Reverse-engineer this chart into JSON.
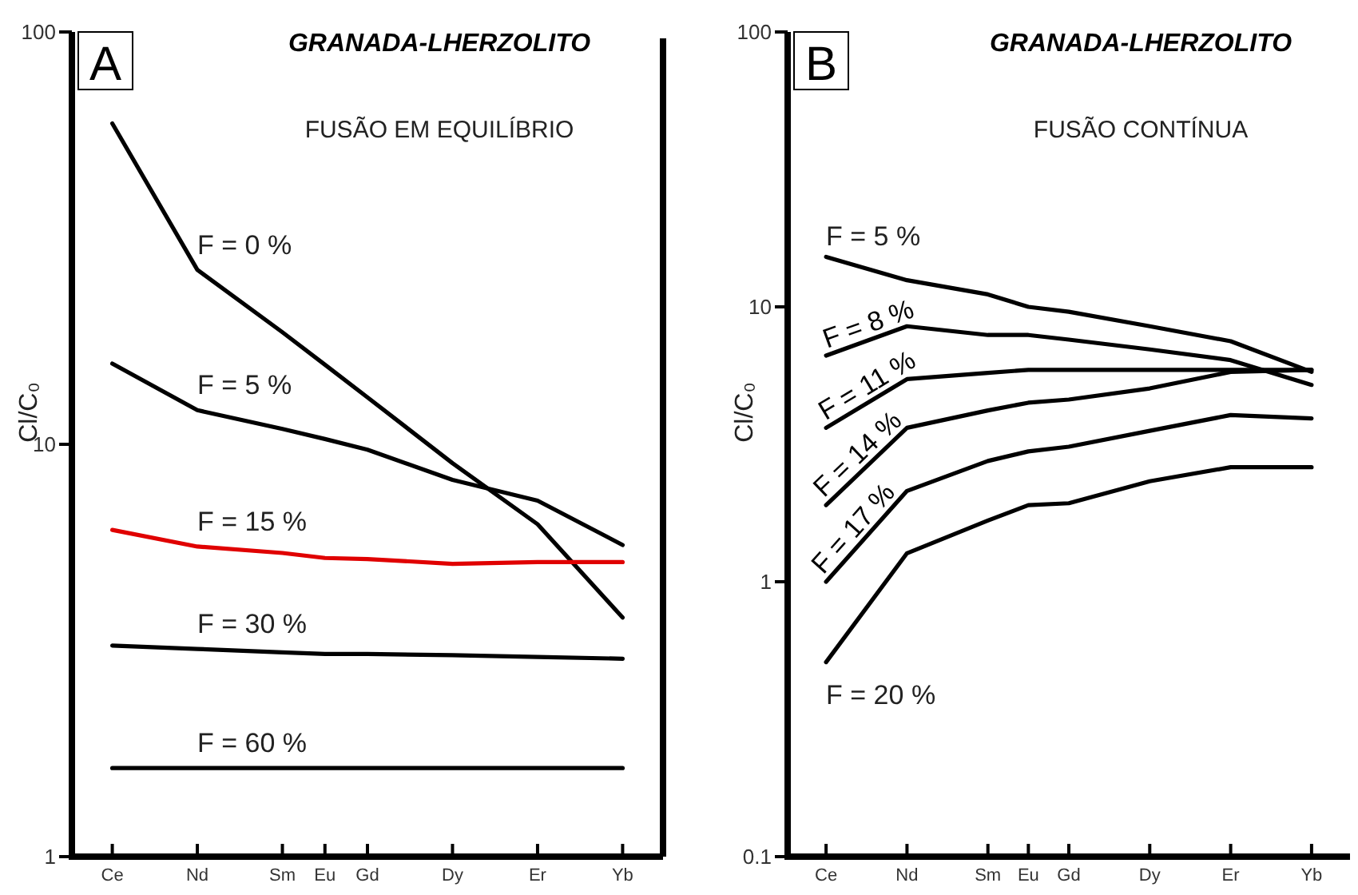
{
  "chart_data": [
    {
      "type": "line",
      "title": "GRANADA-LHERZOLITO",
      "subtitle": "FUSÃO EM  EQUILÍBRIO",
      "ylabel": "Cl/C₀",
      "annotations": [
        "A"
      ],
      "categories": [
        "Ce",
        null,
        "Nd",
        null,
        "Sm",
        "Eu",
        "Gd",
        null,
        "Dy",
        null,
        "Er",
        null,
        "Yb"
      ],
      "ylim": [
        1,
        100
      ],
      "yticks": [
        1,
        10,
        100
      ],
      "log": "y",
      "grid": false,
      "legend": false,
      "marker": "none",
      "line_style": "solid",
      "series": [
        {
          "name": "F = 0 %",
          "color": "#000000",
          "values": [
            60,
            null,
            26.5,
            null,
            18.7,
            15.6,
            13,
            null,
            9,
            null,
            6.4,
            null,
            3.8
          ]
        },
        {
          "name": "F = 5 %",
          "color": "#000000",
          "values": [
            15.7,
            null,
            12.1,
            null,
            10.9,
            10.3,
            9.7,
            null,
            8.2,
            null,
            7.3,
            null,
            5.7
          ]
        },
        {
          "name": "F = 15 %",
          "color": "#e00000",
          "values": [
            6.2,
            null,
            5.65,
            null,
            5.45,
            5.3,
            5.27,
            null,
            5.13,
            null,
            5.18,
            null,
            5.18
          ]
        },
        {
          "name": "F = 30 %",
          "color": "#000000",
          "values": [
            3.25,
            null,
            3.19,
            null,
            3.13,
            3.1,
            3.1,
            null,
            3.08,
            null,
            3.05,
            null,
            3.02
          ]
        },
        {
          "name": "F = 60 %",
          "color": "#000000",
          "values": [
            1.64,
            null,
            1.64,
            null,
            1.64,
            1.64,
            1.64,
            null,
            1.64,
            null,
            1.64,
            null,
            1.64
          ]
        }
      ]
    },
    {
      "type": "line",
      "title": "GRANADA-LHERZOLITO",
      "subtitle": "FUSÃO CONTÍNUA",
      "ylabel": "Cl/C₀",
      "annotations": [
        "B"
      ],
      "categories": [
        "Ce",
        null,
        "Nd",
        null,
        "Sm",
        "Eu",
        "Gd",
        null,
        "Dy",
        null,
        "Er",
        null,
        "Yb"
      ],
      "ylim": [
        0.1,
        100
      ],
      "yticks": [
        0.1,
        1,
        10,
        100
      ],
      "log": "y",
      "grid": false,
      "legend": false,
      "marker": "none",
      "line_style": "solid",
      "series": [
        {
          "name": "F = 5 %",
          "color": "#000000",
          "values": [
            15.2,
            null,
            12.5,
            null,
            11.1,
            10,
            9.6,
            null,
            8.5,
            null,
            7.5,
            null,
            5.8
          ]
        },
        {
          "name": "F = 8 %",
          "color": "#000000",
          "values": [
            6.65,
            null,
            8.5,
            null,
            7.9,
            7.9,
            7.6,
            null,
            7,
            null,
            6.4,
            null,
            5.2
          ]
        },
        {
          "name": "F = 11 %",
          "color": "#000000",
          "values": [
            3.63,
            null,
            5.46,
            null,
            5.75,
            5.9,
            5.9,
            null,
            5.9,
            null,
            5.9,
            null,
            5.9
          ]
        },
        {
          "name": "F = 14 %",
          "color": "#000000",
          "values": [
            1.9,
            null,
            3.63,
            null,
            4.2,
            4.48,
            4.6,
            null,
            5.05,
            null,
            5.8,
            null,
            5.9
          ]
        },
        {
          "name": "F = 17 %",
          "color": "#000000",
          "values": [
            1,
            null,
            2.14,
            null,
            2.75,
            2.98,
            3.1,
            null,
            3.54,
            null,
            4.04,
            null,
            3.93
          ]
        },
        {
          "name": "F = 20 %",
          "color": "#000000",
          "values": [
            0.51,
            null,
            1.27,
            null,
            1.67,
            1.9,
            1.93,
            null,
            2.32,
            null,
            2.61,
            null,
            2.61
          ]
        }
      ]
    }
  ]
}
